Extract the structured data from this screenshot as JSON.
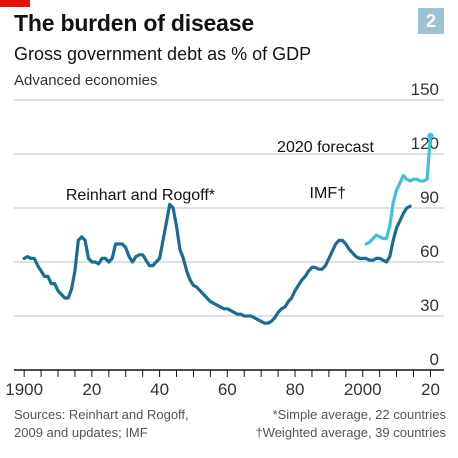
{
  "header": {
    "title": "The burden of disease",
    "badge": "2",
    "subtitle": "Gross government debt as % of GDP",
    "subtitle2": "Advanced economies"
  },
  "footer": {
    "sources_line1": "Sources: Reinhart and Rogoff,",
    "sources_line2": "2009 and updates; IMF",
    "note_line1": "*Simple average, 22 countries",
    "note_line2": "†Weighted average, 39 countries"
  },
  "colors": {
    "accent_red": "#e3120b",
    "rr_series": "#1a6c94",
    "imf_series": "#3ec1d9",
    "grid": "#b7c6cf",
    "badge": "#9fc3d6"
  },
  "chart_data": {
    "type": "line",
    "title": "The burden of disease",
    "ylabel": "Gross government debt as % of GDP",
    "ylim": [
      0,
      150
    ],
    "xlim": [
      1897,
      2024
    ],
    "yticks": [
      0,
      30,
      60,
      90,
      120,
      150
    ],
    "ytick_labels": [
      "0",
      "30",
      "60",
      "90",
      "120",
      "150"
    ],
    "xtick_labels": [
      {
        "x": 1900,
        "label": "1900"
      },
      {
        "x": 1920,
        "label": "20"
      },
      {
        "x": 1940,
        "label": "40"
      },
      {
        "x": 1960,
        "label": "60"
      },
      {
        "x": 1980,
        "label": "80"
      },
      {
        "x": 2000,
        "label": "2000"
      },
      {
        "x": 2020,
        "label": "20"
      }
    ],
    "annotations": [
      {
        "text": "Reinhart and Rogoff*",
        "series": "rr"
      },
      {
        "text": "IMF†",
        "series": "imf"
      },
      {
        "text": "2020 forecast",
        "series": "imf"
      }
    ],
    "series": [
      {
        "id": "rr",
        "x": [
          1900,
          1901,
          1902,
          1903,
          1904,
          1905,
          1906,
          1907,
          1908,
          1909,
          1910,
          1911,
          1912,
          1913,
          1914,
          1915,
          1916,
          1917,
          1918,
          1919,
          1920,
          1921,
          1922,
          1923,
          1924,
          1925,
          1926,
          1927,
          1928,
          1929,
          1930,
          1931,
          1932,
          1933,
          1934,
          1935,
          1936,
          1937,
          1938,
          1939,
          1940,
          1941,
          1942,
          1943,
          1944,
          1945,
          1946,
          1947,
          1948,
          1949,
          1950,
          1951,
          1952,
          1953,
          1954,
          1955,
          1956,
          1957,
          1958,
          1959,
          1960,
          1961,
          1962,
          1963,
          1964,
          1965,
          1966,
          1967,
          1968,
          1969,
          1970,
          1971,
          1972,
          1973,
          1974,
          1975,
          1976,
          1977,
          1978,
          1979,
          1980,
          1981,
          1982,
          1983,
          1984,
          1985,
          1986,
          1987,
          1988,
          1989,
          1990,
          1991,
          1992,
          1993,
          1994,
          1995,
          1996,
          1997,
          1998,
          1999,
          2000,
          2001,
          2002,
          2003,
          2004,
          2005,
          2006,
          2007,
          2008,
          2009,
          2010,
          2011,
          2012,
          2013,
          2014
        ],
        "values": [
          62,
          63,
          62,
          62,
          58,
          55,
          52,
          52,
          48,
          48,
          44,
          42,
          40,
          40,
          45,
          55,
          72,
          74,
          72,
          62,
          60,
          60,
          59,
          62,
          62,
          60,
          62,
          70,
          70,
          70,
          68,
          63,
          60,
          63,
          64,
          64,
          61,
          58,
          58,
          60,
          62,
          72,
          82,
          92,
          90,
          80,
          67,
          62,
          55,
          50,
          47,
          46,
          44,
          42,
          40,
          38,
          37,
          36,
          35,
          34,
          34,
          33,
          32,
          31,
          31,
          30,
          30,
          30,
          29,
          28,
          27,
          26,
          26,
          27,
          29,
          32,
          34,
          35,
          38,
          40,
          44,
          47,
          50,
          52,
          55,
          57,
          57,
          56,
          56,
          58,
          62,
          66,
          70,
          72,
          72,
          70,
          67,
          65,
          63,
          62,
          62,
          62,
          61,
          61,
          62,
          62,
          61,
          60,
          63,
          72,
          79,
          83,
          87,
          90,
          91
        ]
      },
      {
        "id": "imf",
        "x": [
          2001,
          2002,
          2003,
          2004,
          2005,
          2006,
          2007,
          2008,
          2009,
          2010,
          2011,
          2012,
          2013,
          2014,
          2015,
          2016,
          2017,
          2018,
          2019,
          2020
        ],
        "values": [
          70,
          71,
          73,
          75,
          74,
          73,
          73,
          80,
          93,
          100,
          104,
          108,
          106,
          105,
          106,
          106,
          105,
          105,
          106,
          130
        ]
      }
    ]
  }
}
